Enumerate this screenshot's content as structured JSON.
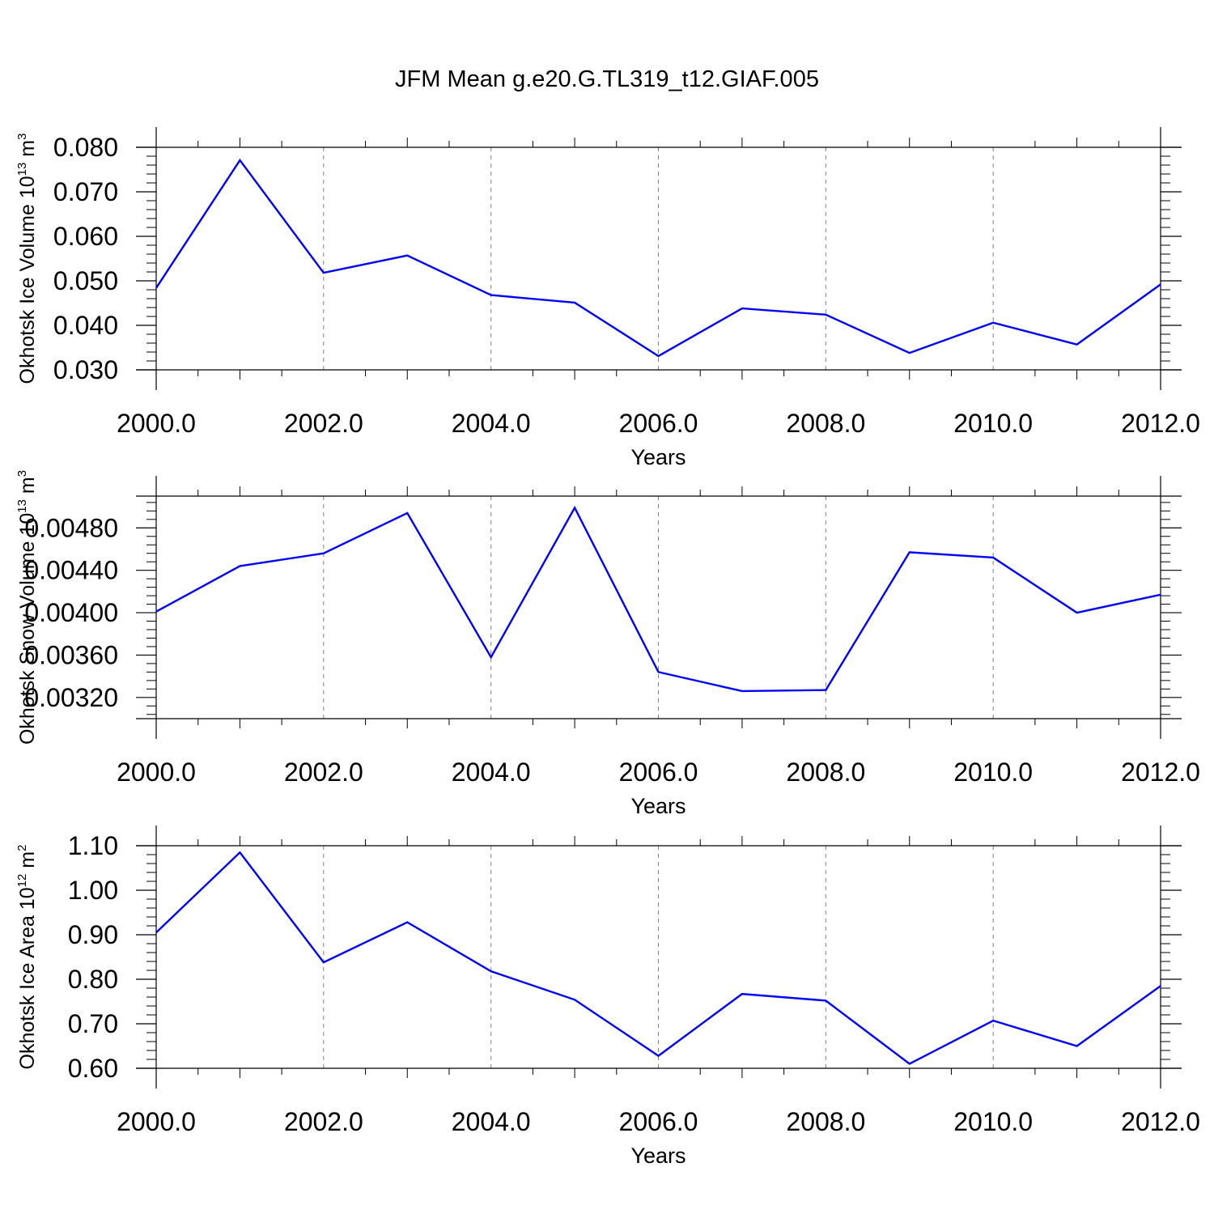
{
  "title": "JFM Mean g.e20.G.TL319_t12.GIAF.005",
  "colors": {
    "line": "#0000ff",
    "axis": "#000000",
    "grid": "#808080"
  },
  "chart_data": [
    {
      "type": "line",
      "title": "JFM Mean g.e20.G.TL319_t12.GIAF.005",
      "xlabel": "Years",
      "ylabel": {
        "main": "Okhotsk Ice Volume 10",
        "exp": "13",
        "unit": " m",
        "unit_exp": "3"
      },
      "x": [
        2000,
        2001,
        2002,
        2003,
        2004,
        2005,
        2006,
        2007,
        2008,
        2009,
        2010,
        2011,
        2012
      ],
      "series": [
        {
          "values": [
            0.0484,
            0.0771,
            0.0518,
            0.0557,
            0.0468,
            0.0451,
            0.0331,
            0.0438,
            0.0424,
            0.0338,
            0.0406,
            0.0357,
            0.0492
          ]
        }
      ],
      "xlim": [
        2000,
        2012
      ],
      "ylim": [
        0.03,
        0.08
      ],
      "x_ticks": [
        "2000.0",
        "2002.0",
        "2004.0",
        "2006.0",
        "2008.0",
        "2010.0",
        "2012.0"
      ],
      "x_tick_values": [
        2000,
        2002,
        2004,
        2006,
        2008,
        2010,
        2012
      ],
      "y_ticks": [
        "0.030",
        "0.040",
        "0.050",
        "0.060",
        "0.070",
        "0.080"
      ],
      "y_tick_values": [
        0.03,
        0.04,
        0.05,
        0.06,
        0.07,
        0.08
      ],
      "grid": "vertical dashed"
    },
    {
      "type": "line",
      "xlabel": "Years",
      "ylabel": {
        "main": "Okhotsk Snow Volume 10",
        "exp": "13",
        "unit": " m",
        "unit_exp": "3"
      },
      "x": [
        2000,
        2001,
        2002,
        2003,
        2004,
        2005,
        2006,
        2007,
        2008,
        2009,
        2010,
        2011,
        2012
      ],
      "series": [
        {
          "values": [
            0.00401,
            0.00444,
            0.00456,
            0.00494,
            0.00358,
            0.00499,
            0.00344,
            0.00326,
            0.00327,
            0.00457,
            0.00452,
            0.004,
            0.00417
          ]
        }
      ],
      "xlim": [
        2000,
        2012
      ],
      "ylim": [
        0.003,
        0.0051
      ],
      "x_ticks": [
        "2000.0",
        "2002.0",
        "2004.0",
        "2006.0",
        "2008.0",
        "2010.0",
        "2012.0"
      ],
      "x_tick_values": [
        2000,
        2002,
        2004,
        2006,
        2008,
        2010,
        2012
      ],
      "y_ticks": [
        "0.00320",
        "0.00360",
        "0.00400",
        "0.00440",
        "0.00480"
      ],
      "y_tick_values": [
        0.0032,
        0.0036,
        0.004,
        0.0044,
        0.0048
      ],
      "grid": "vertical dashed"
    },
    {
      "type": "line",
      "xlabel": "Years",
      "ylabel": {
        "main": "Okhotsk Ice Area 10",
        "exp": "12",
        "unit": " m",
        "unit_exp": "2"
      },
      "x": [
        2000,
        2001,
        2002,
        2003,
        2004,
        2005,
        2006,
        2007,
        2008,
        2009,
        2010,
        2011,
        2012
      ],
      "series": [
        {
          "values": [
            0.905,
            1.085,
            0.838,
            0.928,
            0.818,
            0.754,
            0.628,
            0.767,
            0.752,
            0.61,
            0.707,
            0.65,
            0.785
          ]
        }
      ],
      "xlim": [
        2000,
        2012
      ],
      "ylim": [
        0.6,
        1.1
      ],
      "x_ticks": [
        "2000.0",
        "2002.0",
        "2004.0",
        "2006.0",
        "2008.0",
        "2010.0",
        "2012.0"
      ],
      "x_tick_values": [
        2000,
        2002,
        2004,
        2006,
        2008,
        2010,
        2012
      ],
      "y_ticks": [
        "0.60",
        "0.70",
        "0.80",
        "0.90",
        "1.00",
        "1.10"
      ],
      "y_tick_values": [
        0.6,
        0.7,
        0.8,
        0.9,
        1.0,
        1.1
      ],
      "grid": "vertical dashed"
    }
  ]
}
